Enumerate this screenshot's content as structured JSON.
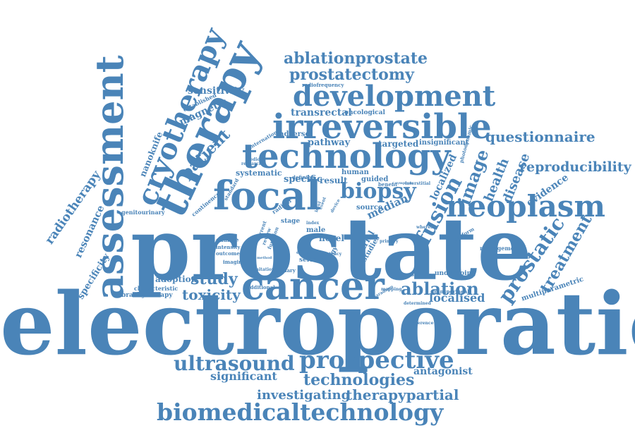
{
  "color": "#4a84b8",
  "words": [
    {
      "text": "electroporation"
    },
    {
      "text": "prostate"
    },
    {
      "text": "cancer"
    },
    {
      "text": "focal"
    },
    {
      "text": "technology"
    },
    {
      "text": "irreversible"
    },
    {
      "text": "development"
    },
    {
      "text": "therapy"
    },
    {
      "text": "assessment"
    },
    {
      "text": "cryotherapy"
    },
    {
      "text": "neoplasm"
    },
    {
      "text": "biopsy"
    },
    {
      "text": "prospective"
    },
    {
      "text": "ultrasound"
    },
    {
      "text": "biomedicaltechnology"
    },
    {
      "text": "ablationprostate"
    },
    {
      "text": "prostatectomy"
    },
    {
      "text": "ablation"
    },
    {
      "text": "prostatic"
    },
    {
      "text": "technologies"
    },
    {
      "text": "therapypartial"
    },
    {
      "text": "investigating"
    },
    {
      "text": "questionnaire"
    },
    {
      "text": "reproducibility"
    },
    {
      "text": "study"
    },
    {
      "text": "toxicity"
    },
    {
      "text": "significant"
    },
    {
      "text": "antagonist"
    },
    {
      "text": "localised"
    },
    {
      "text": "fusion"
    },
    {
      "text": "image"
    },
    {
      "text": "patient"
    },
    {
      "text": "health"
    },
    {
      "text": "disease"
    },
    {
      "text": "treatment"
    },
    {
      "text": "radiotherapy"
    },
    {
      "text": "resonance"
    },
    {
      "text": "specificity"
    },
    {
      "text": "sensitivity"
    },
    {
      "text": "magnetic"
    },
    {
      "text": "nanoknife"
    },
    {
      "text": "transrectal"
    },
    {
      "text": "oncological"
    },
    {
      "text": "pathway"
    },
    {
      "text": "targeted"
    },
    {
      "text": "insignificant"
    },
    {
      "text": "adverse"
    },
    {
      "text": "evidence"
    },
    {
      "text": "localized"
    },
    {
      "text": "median"
    },
    {
      "text": "systematic"
    },
    {
      "text": "specific"
    },
    {
      "text": "result"
    },
    {
      "text": "human"
    },
    {
      "text": "guided"
    },
    {
      "text": "source"
    },
    {
      "text": "adoption"
    },
    {
      "text": "multiparametric"
    },
    {
      "text": "evaluation"
    },
    {
      "text": "brachytherapy"
    },
    {
      "text": "characteristic"
    },
    {
      "text": "genitourinary"
    },
    {
      "text": "radiofrequency"
    },
    {
      "text": "established"
    },
    {
      "text": "international"
    },
    {
      "text": "management"
    },
    {
      "text": "undergoing"
    },
    {
      "text": "transperineal"
    },
    {
      "text": "objective"
    },
    {
      "text": "stage"
    },
    {
      "text": "male"
    },
    {
      "text": "novel"
    },
    {
      "text": "trial"
    },
    {
      "text": "studies"
    },
    {
      "text": "change"
    },
    {
      "text": "intensity"
    },
    {
      "text": "outcome"
    },
    {
      "text": "imaging"
    },
    {
      "text": "standard"
    },
    {
      "text": "continence"
    },
    {
      "text": "radical"
    },
    {
      "text": "defining"
    },
    {
      "text": "serious"
    },
    {
      "text": "energy"
    },
    {
      "text": "additional"
    },
    {
      "text": "urinary"
    },
    {
      "text": "limitation"
    },
    {
      "text": "photodynamic"
    },
    {
      "text": "benefit"
    },
    {
      "text": "interstitial"
    },
    {
      "text": "platform"
    },
    {
      "text": "mapping"
    },
    {
      "text": "paradigm"
    },
    {
      "text": "determined"
    },
    {
      "text": "preference"
    },
    {
      "text": "effect"
    },
    {
      "text": "review"
    },
    {
      "text": "function"
    },
    {
      "text": "current"
    },
    {
      "text": "primary"
    },
    {
      "text": "whereas"
    },
    {
      "text": "medical"
    },
    {
      "text": "research"
    },
    {
      "text": "potency"
    },
    {
      "text": "level"
    },
    {
      "text": "event"
    },
    {
      "text": "method"
    },
    {
      "text": "index"
    },
    {
      "text": "device"
    },
    {
      "text": "symptom"
    }
  ]
}
